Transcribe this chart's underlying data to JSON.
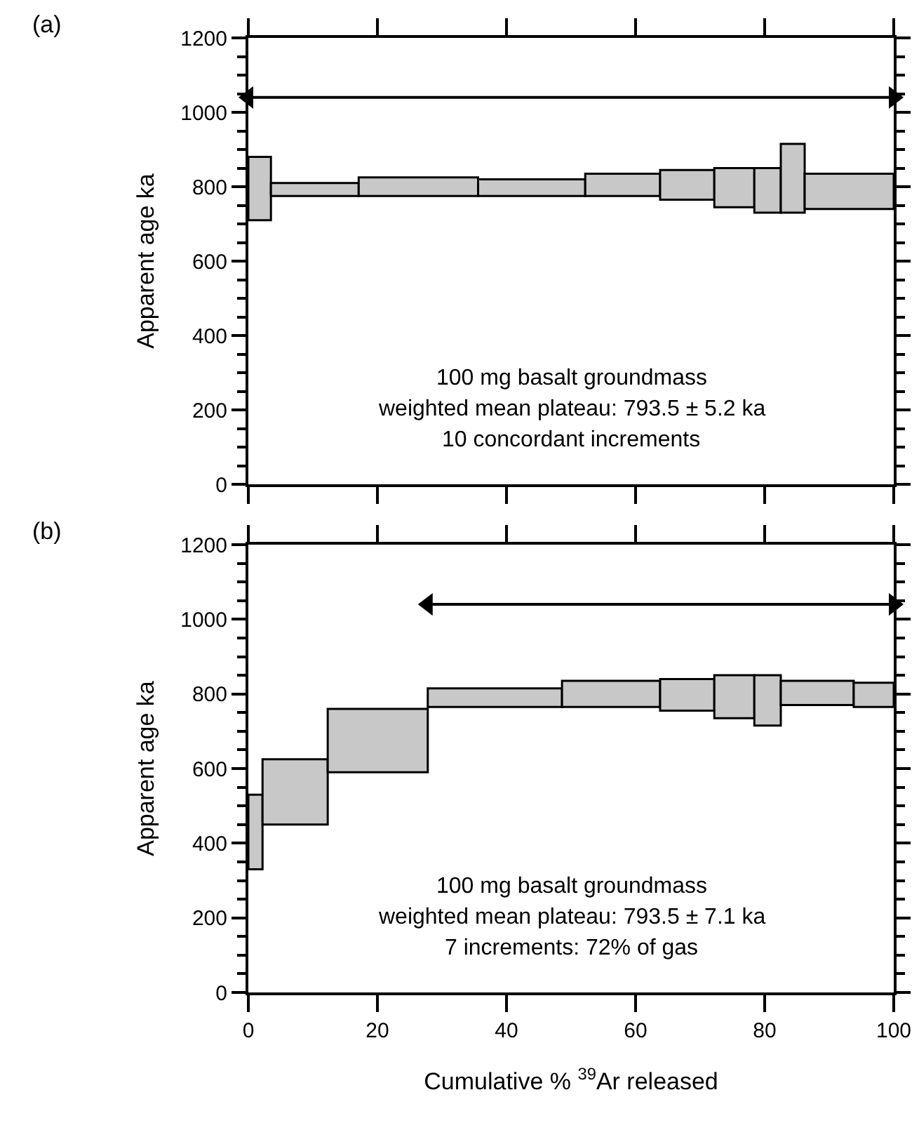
{
  "chart_data": [
    {
      "type": "histogram",
      "ylabel": "Apparent age ka",
      "annotations": [
        "(a)",
        "100 mg basalt groundmass",
        "weighted mean plateau: 793.5 ± 5.2 ka",
        "10 concordant increments"
      ],
      "xlim": [
        0,
        100
      ],
      "xticks": [
        {
          "value": 0,
          "label": null
        },
        {
          "value": 20,
          "label": null
        },
        {
          "value": 40,
          "label": null
        },
        {
          "value": 60,
          "label": null
        },
        {
          "value": 80,
          "label": null
        },
        {
          "value": 100,
          "label": null
        }
      ],
      "ylim": [
        0,
        1200
      ],
      "yticks": [
        0,
        200,
        400,
        600,
        800,
        1000,
        1200
      ],
      "tick_labels": "y",
      "grid": false,
      "legend": false,
      "series": [
        {
          "color": "#c8c8c8",
          "bins": [
            0,
            3.5,
            17.1,
            35.6,
            52.2,
            63.8,
            72.2,
            78.4,
            82.5,
            86.2,
            100
          ],
          "base": [
            710,
            775,
            775,
            775,
            775,
            765,
            745,
            730,
            730,
            740
          ],
          "values": [
            170,
            35,
            50,
            45,
            60,
            80,
            105,
            120,
            185,
            95
          ]
        },
        {
          "type": "line",
          "color": "#000000",
          "marker": "triangle",
          "x": [
            0,
            100
          ],
          "values": [
            1040,
            1040
          ]
        }
      ]
    },
    {
      "type": "histogram",
      "ylabel": "Apparent age ka",
      "xlabel": "Cumulative % $^{39}$Ar released",
      "annotations": [
        "(b)",
        "100 mg basalt groundmass",
        "weighted mean plateau: 793.5 ± 7.1 ka",
        "7 increments: 72% of gas"
      ],
      "xlim": [
        0,
        100
      ],
      "xticks": [
        0,
        20,
        40,
        60,
        80,
        100
      ],
      "ylim": [
        0,
        1200
      ],
      "yticks": [
        0,
        200,
        400,
        600,
        800,
        1000,
        1200
      ],
      "grid": false,
      "legend": false,
      "series": [
        {
          "color": "#c8c8c8",
          "bins": [
            0,
            2.2,
            12.3,
            27.8,
            48.6,
            63.8,
            72.2,
            78.4,
            82.5,
            93.8,
            100
          ],
          "base": [
            330,
            450,
            590,
            765,
            765,
            755,
            735,
            715,
            770,
            765
          ],
          "values": [
            200,
            175,
            170,
            50,
            70,
            85,
            115,
            135,
            65,
            65
          ]
        },
        {
          "type": "line",
          "color": "#000000",
          "marker": "triangle",
          "x": [
            27.8,
            100
          ],
          "values": [
            1040,
            1040
          ]
        }
      ]
    }
  ]
}
